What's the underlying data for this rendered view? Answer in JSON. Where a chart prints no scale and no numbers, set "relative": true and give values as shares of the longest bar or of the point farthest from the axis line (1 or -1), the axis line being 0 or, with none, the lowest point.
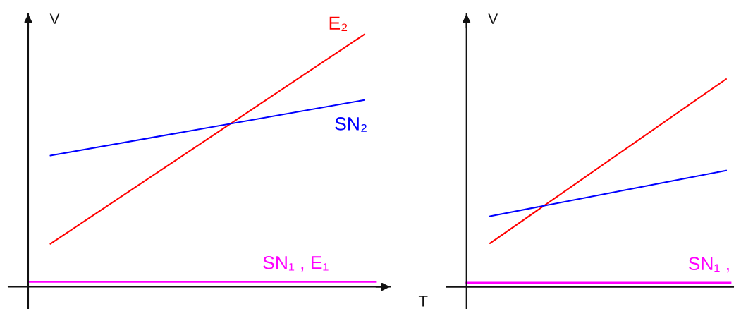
{
  "chart_data": [
    {
      "type": "line",
      "relative": true,
      "xlabel": "T",
      "ylabel": "V",
      "categories": [
        null,
        null
      ],
      "series": [
        {
          "name": "E₂",
          "color": "#ff0000",
          "values": [
            0.17,
            1
          ]
        },
        {
          "name": "SN₂",
          "color": "#0000ff",
          "values": [
            0.52,
            0.74
          ]
        }
      ],
      "ref_lines": [
        {
          "axis": "y",
          "value": 0.02,
          "label": "SN₁ , E₁",
          "color": "#ff00ff"
        }
      ]
    },
    {
      "type": "line",
      "relative": true,
      "ylabel": "V",
      "categories": [
        null,
        null
      ],
      "series": [
        {
          "color": "#ff0000",
          "values": [
            0.21,
            1
          ]
        },
        {
          "color": "#0000ff",
          "values": [
            0.34,
            0.56
          ]
        }
      ],
      "ref_lines": [
        {
          "axis": "y",
          "value": 0.02,
          "label": "SN₁ ,",
          "color": "#ff00ff"
        }
      ]
    }
  ]
}
